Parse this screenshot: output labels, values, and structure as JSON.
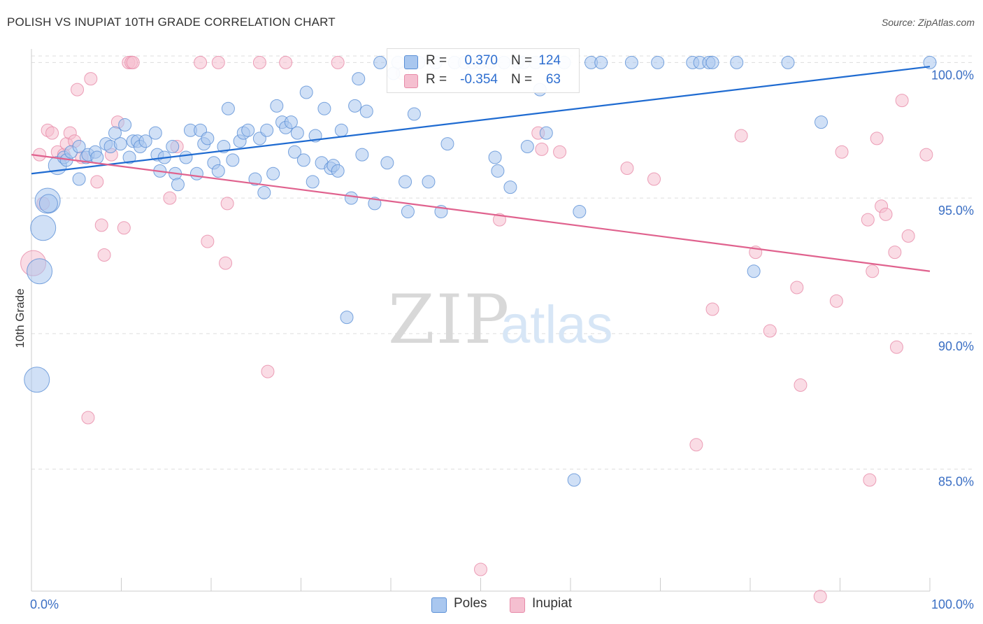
{
  "header": {
    "title": "POLISH VS INUPIAT 10TH GRADE CORRELATION CHART",
    "source": "Source: ZipAtlas.com"
  },
  "watermark": {
    "zip": "ZIP",
    "atlas": "atlas"
  },
  "colors": {
    "blue_fill": "#a9c7ef",
    "blue_stroke": "#5a8fd6",
    "blue_line": "#1f6bd1",
    "pink_fill": "#f5bfd0",
    "pink_stroke": "#e78aa8",
    "pink_line": "#e0628e",
    "axis_label": "#3b6fc4",
    "grid": "#dddddd"
  },
  "legend": {
    "rows": [
      {
        "series": "Poles",
        "r_label": "R =",
        "r_value": "0.370",
        "n_label": "N =",
        "n_value": "124"
      },
      {
        "series": "Inupiat",
        "r_label": "R =",
        "r_value": "-0.354",
        "n_label": "N =",
        "n_value": "63"
      }
    ]
  },
  "bottom_legend": [
    "Poles",
    "Inupiat"
  ],
  "chart_data": {
    "type": "scatter",
    "title": "POLISH VS INUPIAT 10TH GRADE CORRELATION CHART",
    "xlabel": "",
    "ylabel": "10th Grade",
    "xlim": [
      0,
      100
    ],
    "ylim": [
      80.5,
      100.5
    ],
    "x_tick_labels": [
      "0.0%",
      "100.0%"
    ],
    "y_ticks": [
      85,
      90,
      95,
      100
    ],
    "y_tick_labels": [
      "85.0%",
      "90.0%",
      "95.0%",
      "100.0%"
    ],
    "grid": true,
    "series": [
      {
        "name": "Poles",
        "r": 0.37,
        "n": 124,
        "trend": [
          [
            0,
            95.9
          ],
          [
            100,
            99.85
          ]
        ],
        "points": [
          [
            0.6,
            88.3,
            3
          ],
          [
            0.9,
            92.3,
            3
          ],
          [
            1.3,
            93.9,
            3
          ],
          [
            1.8,
            94.9,
            3
          ],
          [
            1.9,
            94.8,
            2
          ],
          [
            2.9,
            96.2,
            2
          ],
          [
            3.6,
            96.5,
            1
          ],
          [
            3.9,
            96.4,
            1
          ],
          [
            4.4,
            96.7,
            1
          ],
          [
            5.3,
            96.9,
            1
          ],
          [
            5.3,
            95.7,
            1
          ],
          [
            6.1,
            96.5,
            1
          ],
          [
            6.3,
            96.6,
            1
          ],
          [
            7.1,
            96.7,
            1
          ],
          [
            7.3,
            96.5,
            1
          ],
          [
            8.3,
            97.0,
            1
          ],
          [
            8.8,
            96.9,
            1
          ],
          [
            9.3,
            97.4,
            1
          ],
          [
            9.9,
            97.0,
            1
          ],
          [
            10.4,
            97.7,
            1
          ],
          [
            10.9,
            96.5,
            1
          ],
          [
            11.3,
            97.1,
            1
          ],
          [
            11.8,
            97.1,
            1
          ],
          [
            12.1,
            96.9,
            1
          ],
          [
            12.7,
            97.1,
            1
          ],
          [
            13.8,
            97.4,
            1
          ],
          [
            14.0,
            96.6,
            1
          ],
          [
            14.3,
            96.0,
            1
          ],
          [
            14.8,
            96.5,
            1
          ],
          [
            15.7,
            96.9,
            1
          ],
          [
            16.0,
            95.9,
            1
          ],
          [
            16.3,
            95.5,
            1
          ],
          [
            17.2,
            96.5,
            1
          ],
          [
            17.7,
            97.5,
            1
          ],
          [
            18.4,
            95.9,
            1
          ],
          [
            18.8,
            97.5,
            1
          ],
          [
            19.2,
            97.0,
            1
          ],
          [
            19.6,
            97.2,
            1
          ],
          [
            20.3,
            96.3,
            1
          ],
          [
            20.8,
            96.0,
            1
          ],
          [
            21.4,
            96.9,
            1
          ],
          [
            21.9,
            98.3,
            1
          ],
          [
            22.4,
            96.4,
            1
          ],
          [
            23.2,
            97.1,
            1
          ],
          [
            23.6,
            97.4,
            1
          ],
          [
            24.1,
            97.5,
            1
          ],
          [
            24.9,
            95.7,
            1
          ],
          [
            25.4,
            97.2,
            1
          ],
          [
            25.9,
            95.2,
            1
          ],
          [
            26.2,
            97.5,
            1
          ],
          [
            26.9,
            95.9,
            1
          ],
          [
            27.3,
            98.4,
            1
          ],
          [
            27.9,
            97.8,
            1
          ],
          [
            28.3,
            97.6,
            1
          ],
          [
            28.9,
            97.8,
            1
          ],
          [
            29.3,
            96.7,
            1
          ],
          [
            29.6,
            97.4,
            1
          ],
          [
            30.3,
            96.4,
            1
          ],
          [
            30.6,
            98.9,
            1
          ],
          [
            31.3,
            95.6,
            1
          ],
          [
            31.6,
            97.3,
            1
          ],
          [
            32.3,
            96.3,
            1
          ],
          [
            32.6,
            98.3,
            1
          ],
          [
            33.3,
            96.1,
            1
          ],
          [
            33.6,
            96.2,
            1
          ],
          [
            34.1,
            96.0,
            1
          ],
          [
            34.5,
            97.5,
            1
          ],
          [
            35.1,
            90.6,
            1
          ],
          [
            35.6,
            95.0,
            1
          ],
          [
            36.0,
            98.4,
            1
          ],
          [
            36.4,
            99.4,
            1
          ],
          [
            36.8,
            96.6,
            1
          ],
          [
            37.3,
            98.2,
            1
          ],
          [
            38.2,
            94.8,
            1
          ],
          [
            38.8,
            100.0,
            1
          ],
          [
            39.6,
            96.3,
            1
          ],
          [
            40.3,
            99.6,
            1
          ],
          [
            40.8,
            100.0,
            1
          ],
          [
            41.6,
            95.6,
            1
          ],
          [
            41.9,
            94.5,
            1
          ],
          [
            42.6,
            98.1,
            1
          ],
          [
            43.1,
            100.0,
            1
          ],
          [
            44.2,
            95.6,
            1
          ],
          [
            45.0,
            100.0,
            1
          ],
          [
            45.6,
            94.5,
            1
          ],
          [
            46.3,
            97.0,
            1
          ],
          [
            47.1,
            100.0,
            1
          ],
          [
            48.2,
            100.0,
            1
          ],
          [
            49.1,
            100.0,
            1
          ],
          [
            50.0,
            100.0,
            1
          ],
          [
            51.1,
            100.0,
            1
          ],
          [
            51.6,
            96.5,
            1
          ],
          [
            51.9,
            96.0,
            1
          ],
          [
            52.6,
            100.0,
            1
          ],
          [
            53.3,
            95.4,
            1
          ],
          [
            54.1,
            100.0,
            1
          ],
          [
            54.8,
            100.0,
            1
          ],
          [
            55.2,
            96.9,
            1
          ],
          [
            56.1,
            100.0,
            1
          ],
          [
            56.6,
            99.0,
            1
          ],
          [
            57.3,
            97.4,
            1
          ],
          [
            59.3,
            100.0,
            1
          ],
          [
            60.4,
            84.6,
            1
          ],
          [
            61.0,
            94.5,
            1
          ],
          [
            62.3,
            100.0,
            1
          ],
          [
            63.4,
            100.0,
            1
          ],
          [
            66.8,
            100.0,
            1
          ],
          [
            69.7,
            100.0,
            1
          ],
          [
            73.6,
            100.0,
            1
          ],
          [
            74.4,
            100.0,
            1
          ],
          [
            75.4,
            100.0,
            1
          ],
          [
            75.8,
            100.0,
            1
          ],
          [
            78.5,
            100.0,
            1
          ],
          [
            80.4,
            92.3,
            1
          ],
          [
            84.2,
            100.0,
            1
          ],
          [
            87.9,
            97.8,
            1
          ],
          [
            100.0,
            100.0,
            1
          ]
        ]
      },
      {
        "name": "Inupiat",
        "r": -0.354,
        "n": 63,
        "trend": [
          [
            0,
            96.6
          ],
          [
            100,
            92.3
          ]
        ],
        "points": [
          [
            0.2,
            92.6,
            3
          ],
          [
            0.9,
            96.6,
            1
          ],
          [
            1.3,
            94.8,
            1
          ],
          [
            1.8,
            97.5,
            1
          ],
          [
            2.3,
            97.4,
            1
          ],
          [
            2.9,
            96.7,
            1
          ],
          [
            3.6,
            96.6,
            1
          ],
          [
            3.9,
            97.0,
            1
          ],
          [
            4.3,
            97.4,
            1
          ],
          [
            4.8,
            97.1,
            1
          ],
          [
            5.1,
            99.0,
            1
          ],
          [
            5.6,
            96.5,
            1
          ],
          [
            6.3,
            86.9,
            1
          ],
          [
            6.6,
            99.4,
            1
          ],
          [
            7.3,
            95.6,
            1
          ],
          [
            7.8,
            94.0,
            1
          ],
          [
            8.1,
            92.9,
            1
          ],
          [
            8.9,
            96.6,
            1
          ],
          [
            9.6,
            97.8,
            1
          ],
          [
            10.3,
            93.9,
            1
          ],
          [
            10.8,
            100.0,
            1
          ],
          [
            11.1,
            100.0,
            1
          ],
          [
            11.3,
            100.0,
            1
          ],
          [
            15.4,
            95.0,
            1
          ],
          [
            16.2,
            96.9,
            1
          ],
          [
            18.8,
            100.0,
            1
          ],
          [
            19.6,
            93.4,
            1
          ],
          [
            20.8,
            100.0,
            1
          ],
          [
            21.6,
            92.6,
            1
          ],
          [
            21.8,
            94.8,
            1
          ],
          [
            25.4,
            100.0,
            1
          ],
          [
            26.3,
            88.6,
            1
          ],
          [
            28.3,
            100.0,
            1
          ],
          [
            34.1,
            100.0,
            1
          ],
          [
            41.3,
            99.6,
            1
          ],
          [
            50.0,
            81.3,
            1
          ],
          [
            52.1,
            94.2,
            1
          ],
          [
            56.4,
            97.4,
            1
          ],
          [
            56.8,
            96.8,
            1
          ],
          [
            58.8,
            96.7,
            1
          ],
          [
            66.3,
            96.1,
            1
          ],
          [
            69.3,
            95.7,
            1
          ],
          [
            74.0,
            85.9,
            1
          ],
          [
            75.8,
            90.9,
            1
          ],
          [
            79.0,
            97.3,
            1
          ],
          [
            80.6,
            93.0,
            1
          ],
          [
            82.2,
            90.1,
            1
          ],
          [
            85.2,
            91.7,
            1
          ],
          [
            85.6,
            88.1,
            1
          ],
          [
            87.8,
            80.3,
            1
          ],
          [
            89.6,
            91.2,
            1
          ],
          [
            90.2,
            96.7,
            1
          ],
          [
            93.1,
            94.2,
            1
          ],
          [
            93.3,
            84.6,
            1
          ],
          [
            93.6,
            92.3,
            1
          ],
          [
            94.1,
            97.2,
            1
          ],
          [
            94.6,
            94.7,
            1
          ],
          [
            95.1,
            94.4,
            1
          ],
          [
            96.1,
            93.0,
            1
          ],
          [
            96.3,
            89.5,
            1
          ],
          [
            96.9,
            98.6,
            1
          ],
          [
            97.6,
            93.6,
            1
          ],
          [
            99.6,
            96.6,
            1
          ]
        ]
      }
    ]
  }
}
